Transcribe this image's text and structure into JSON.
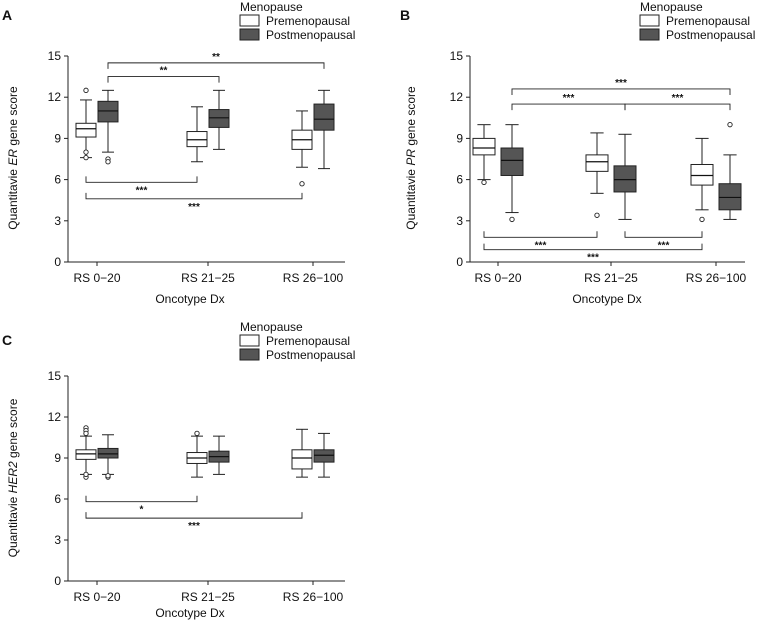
{
  "chart_data": [
    {
      "type": "box",
      "panel_label": "A",
      "ylabel_prefix": "Quantitavie ",
      "ylabel_gene": "ER",
      "ylabel_suffix": " gene score",
      "xlabel": "Oncotype Dx",
      "categories": [
        "RS 0−20",
        "RS 21−25",
        "RS 26−100"
      ],
      "ylim": [
        0,
        15
      ],
      "yticks": [
        0,
        3,
        6,
        9,
        12,
        15
      ],
      "legend": {
        "title": "Menopause",
        "entries": [
          "Premenopausal",
          "Postmenopausal"
        ],
        "colors": [
          "#ffffff",
          "#555555"
        ]
      },
      "series": [
        {
          "name": "Premenopausal",
          "boxes": [
            {
              "min": 7.6,
              "q1": 9.1,
              "median": 9.7,
              "q3": 10.1,
              "max": 11.8,
              "outliers": [
                12.5,
                8.0,
                7.6
              ]
            },
            {
              "min": 7.3,
              "q1": 8.4,
              "median": 8.9,
              "q3": 9.5,
              "max": 11.3,
              "outliers": []
            },
            {
              "min": 6.9,
              "q1": 8.2,
              "median": 8.9,
              "q3": 9.6,
              "max": 11.0,
              "outliers": [
                5.7
              ]
            }
          ]
        },
        {
          "name": "Postmenopausal",
          "boxes": [
            {
              "min": 8.0,
              "q1": 10.2,
              "median": 11.0,
              "q3": 11.7,
              "max": 12.5,
              "outliers": [
                7.5,
                7.3
              ]
            },
            {
              "min": 8.2,
              "q1": 9.8,
              "median": 10.5,
              "q3": 11.1,
              "max": 12.5,
              "outliers": []
            },
            {
              "min": 6.8,
              "q1": 9.6,
              "median": 10.4,
              "q3": 11.5,
              "max": 12.5,
              "outliers": []
            }
          ]
        }
      ],
      "comparisons": [
        {
          "g1": 0,
          "s1": 1,
          "g2": 1,
          "s2": 1,
          "y": 13.5,
          "dir": "down",
          "label": "**"
        },
        {
          "g1": 0,
          "s1": 1,
          "g2": 2,
          "s2": 1,
          "y": 14.5,
          "dir": "down",
          "label": "**"
        },
        {
          "g1": 0,
          "s1": 0,
          "g2": 1,
          "s2": 0,
          "y": 5.8,
          "dir": "up",
          "label": "***"
        },
        {
          "g1": 0,
          "s1": 0,
          "g2": 2,
          "s2": 0,
          "y": 4.6,
          "dir": "up",
          "label": "***"
        }
      ]
    },
    {
      "type": "box",
      "panel_label": "B",
      "ylabel_prefix": "Quantitavie ",
      "ylabel_gene": "PR",
      "ylabel_suffix": " gene score",
      "xlabel": "Oncotype Dx",
      "categories": [
        "RS 0−20",
        "RS 21−25",
        "RS 26−100"
      ],
      "ylim": [
        0,
        15
      ],
      "yticks": [
        0,
        3,
        6,
        9,
        12,
        15
      ],
      "legend": {
        "title": "Menopause",
        "entries": [
          "Premenopausal",
          "Postmenopausal"
        ],
        "colors": [
          "#ffffff",
          "#555555"
        ]
      },
      "series": [
        {
          "name": "Premenopausal",
          "boxes": [
            {
              "min": 6.0,
              "q1": 7.8,
              "median": 8.3,
              "q3": 9.0,
              "max": 10.0,
              "outliers": [
                5.8
              ]
            },
            {
              "min": 5.0,
              "q1": 6.6,
              "median": 7.3,
              "q3": 7.8,
              "max": 9.4,
              "outliers": [
                3.4
              ]
            },
            {
              "min": 3.8,
              "q1": 5.6,
              "median": 6.3,
              "q3": 7.1,
              "max": 9.0,
              "outliers": [
                3.1
              ]
            }
          ]
        },
        {
          "name": "Postmenopausal",
          "boxes": [
            {
              "min": 3.6,
              "q1": 6.3,
              "median": 7.4,
              "q3": 8.3,
              "max": 10.0,
              "outliers": [
                3.1
              ]
            },
            {
              "min": 3.1,
              "q1": 5.1,
              "median": 6.0,
              "q3": 7.0,
              "max": 9.3,
              "outliers": []
            },
            {
              "min": 3.1,
              "q1": 3.8,
              "median": 4.7,
              "q3": 5.7,
              "max": 7.8,
              "outliers": [
                10.0
              ]
            }
          ]
        }
      ],
      "comparisons": [
        {
          "g1": 0,
          "s1": 1,
          "g2": 1,
          "s2": 1,
          "y": 11.5,
          "dir": "down",
          "label": "***"
        },
        {
          "g1": 0,
          "s1": 1,
          "g2": 2,
          "s2": 1,
          "y": 12.6,
          "dir": "down",
          "label": "***"
        },
        {
          "g1": 1,
          "s1": 1,
          "g2": 2,
          "s2": 1,
          "y": 11.5,
          "dir": "down",
          "label": "***"
        },
        {
          "g1": 0,
          "s1": 0,
          "g2": 1,
          "s2": 0,
          "y": 1.8,
          "dir": "up",
          "label": "***"
        },
        {
          "g1": 1,
          "s1": 1,
          "g2": 2,
          "s2": 0,
          "y": 1.8,
          "dir": "up",
          "label": "***"
        },
        {
          "g1": 0,
          "s1": 0,
          "g2": 2,
          "s2": 0,
          "y": 0.9,
          "dir": "up",
          "label": "***"
        }
      ]
    },
    {
      "type": "box",
      "panel_label": "C",
      "ylabel_prefix": "Quantitavie ",
      "ylabel_gene": "HER2",
      "ylabel_suffix": " gene score",
      "xlabel": "Oncotype Dx",
      "categories": [
        "RS 0−20",
        "RS 21−25",
        "RS 26−100"
      ],
      "ylim": [
        0,
        15
      ],
      "yticks": [
        0,
        3,
        6,
        9,
        12,
        15
      ],
      "legend": {
        "title": "Menopause",
        "entries": [
          "Premenopausal",
          "Postmenopausal"
        ],
        "colors": [
          "#ffffff",
          "#555555"
        ]
      },
      "series": [
        {
          "name": "Premenopausal",
          "boxes": [
            {
              "min": 7.8,
              "q1": 8.9,
              "median": 9.3,
              "q3": 9.6,
              "max": 10.6,
              "outliers": [
                11.2,
                11.0,
                10.8,
                7.6,
                7.8
              ]
            },
            {
              "min": 7.6,
              "q1": 8.6,
              "median": 9.0,
              "q3": 9.4,
              "max": 10.6,
              "outliers": [
                10.8
              ]
            },
            {
              "min": 7.6,
              "q1": 8.2,
              "median": 9.0,
              "q3": 9.6,
              "max": 11.1,
              "outliers": []
            }
          ]
        },
        {
          "name": "Postmenopausal",
          "boxes": [
            {
              "min": 7.8,
              "q1": 9.0,
              "median": 9.3,
              "q3": 9.7,
              "max": 10.7,
              "outliers": [
                7.6,
                7.7
              ]
            },
            {
              "min": 7.8,
              "q1": 8.7,
              "median": 9.1,
              "q3": 9.5,
              "max": 10.6,
              "outliers": []
            },
            {
              "min": 7.6,
              "q1": 8.7,
              "median": 9.2,
              "q3": 9.6,
              "max": 10.8,
              "outliers": []
            }
          ]
        }
      ],
      "comparisons": [
        {
          "g1": 0,
          "s1": 0,
          "g2": 1,
          "s2": 0,
          "y": 5.8,
          "dir": "up",
          "label": "*"
        },
        {
          "g1": 0,
          "s1": 0,
          "g2": 2,
          "s2": 0,
          "y": 4.6,
          "dir": "up",
          "label": "***"
        }
      ]
    }
  ]
}
